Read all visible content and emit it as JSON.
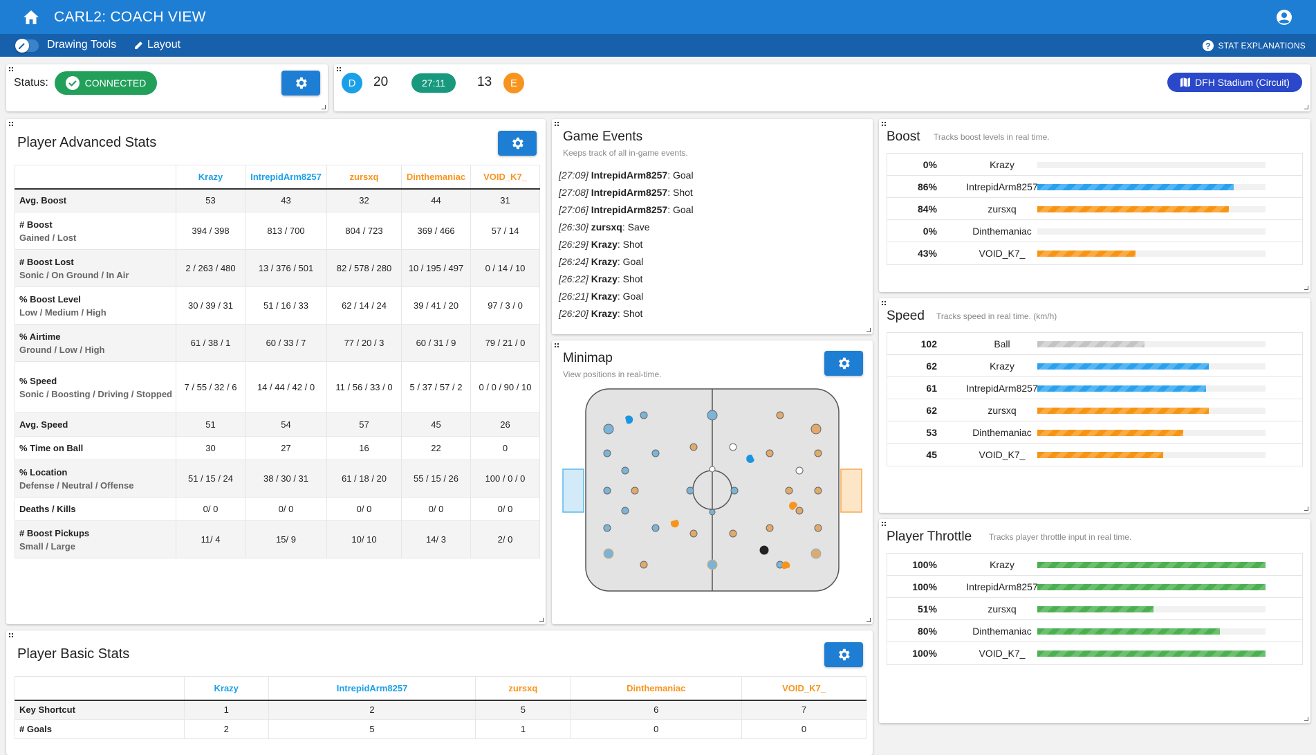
{
  "app": {
    "title": "CARL2: COACH VIEW",
    "home_icon": "home-icon",
    "account_icon": "account-icon"
  },
  "toolbar": {
    "drawing_tools": "Drawing Tools",
    "layout": "Layout",
    "stat_explanations": "STAT EXPLANATIONS"
  },
  "status": {
    "label": "Status:",
    "value": "CONNECTED"
  },
  "scoreboard": {
    "team_left": {
      "letter": "D",
      "score": "20",
      "color": "#1aa0e8"
    },
    "clock": "27:11",
    "team_right": {
      "letter": "E",
      "score": "13",
      "color": "#f7941d"
    },
    "stadium": "DFH Stadium (Circuit)"
  },
  "advanced": {
    "title": "Player Advanced Stats",
    "players": [
      {
        "name": "Krazy",
        "color": "#1aa0e8"
      },
      {
        "name": "IntrepidArm8257",
        "color": "#1aa0e8"
      },
      {
        "name": "zursxq",
        "color": "#f7941d"
      },
      {
        "name": "Dinthemaniac",
        "color": "#f7941d"
      },
      {
        "name": "VOID_K7_",
        "color": "#f7941d"
      }
    ],
    "rows": [
      {
        "label": "Avg. Boost",
        "sub": "",
        "values": [
          "53",
          "43",
          "32",
          "44",
          "31"
        ]
      },
      {
        "label": "# Boost",
        "sub": "Gained / Lost",
        "values": [
          "394 / 398",
          "813 / 700",
          "804 / 723",
          "369 / 466",
          "57 / 14"
        ]
      },
      {
        "label": "# Boost Lost",
        "sub": "Sonic / On Ground / In Air",
        "values": [
          "2 / 263 / 480",
          "13 / 376 / 501",
          "82 / 578 / 280",
          "10 / 195 / 497",
          "0 / 14 / 10"
        ]
      },
      {
        "label": "% Boost Level",
        "sub": "Low / Medium / High",
        "values": [
          "30 / 39 / 31",
          "51 / 16 / 33",
          "62 / 14 / 24",
          "39 / 41 / 20",
          "97 / 3 / 0"
        ]
      },
      {
        "label": "% Airtime",
        "sub": "Ground / Low / High",
        "values": [
          "61 / 38 / 1",
          "60 / 33 / 7",
          "77 / 20 / 3",
          "60 / 31 / 9",
          "79 / 21 / 0"
        ]
      },
      {
        "label": "% Speed",
        "sub": "Sonic / Boosting / Driving / Stopped",
        "values": [
          "7 / 55 / 32 / 6",
          "14 / 44 / 42 / 0",
          "11 / 56 / 33 / 0",
          "5 / 37 / 57 / 2",
          "0 / 0 / 90 / 10"
        ]
      },
      {
        "label": "Avg. Speed",
        "sub": "",
        "values": [
          "51",
          "54",
          "57",
          "45",
          "26"
        ]
      },
      {
        "label": "% Time on Ball",
        "sub": "",
        "values": [
          "30",
          "27",
          "16",
          "22",
          "0"
        ]
      },
      {
        "label": "% Location",
        "sub": "Defense / Neutral / Offense",
        "values": [
          "51 / 15 / 24",
          "38 / 30 / 31",
          "61 / 18 / 20",
          "55 / 15 / 26",
          "100 / 0 / 0"
        ]
      },
      {
        "label": "Deaths / Kills",
        "sub": "",
        "values": [
          "0/ 0",
          "0/ 0",
          "0/ 0",
          "0/ 0",
          "0/ 0"
        ]
      },
      {
        "label": "# Boost Pickups",
        "sub": "Small / Large",
        "values": [
          "11/ 4",
          "15/ 9",
          "10/ 10",
          "14/ 3",
          "2/ 0"
        ]
      }
    ]
  },
  "events": {
    "title": "Game Events",
    "subtitle": "Keeps track of all in-game events.",
    "items": [
      {
        "time": "[27:09]",
        "player": "IntrepidArm8257",
        "event": ": Goal"
      },
      {
        "time": "[27:08]",
        "player": "IntrepidArm8257",
        "event": ": Shot"
      },
      {
        "time": "[27:06]",
        "player": "IntrepidArm8257",
        "event": ": Goal"
      },
      {
        "time": "[26:30]",
        "player": "zursxq",
        "event": ": Save"
      },
      {
        "time": "[26:29]",
        "player": "Krazy",
        "event": ": Shot"
      },
      {
        "time": "[26:24]",
        "player": "Krazy",
        "event": ": Goal"
      },
      {
        "time": "[26:22]",
        "player": "Krazy",
        "event": ": Shot"
      },
      {
        "time": "[26:21]",
        "player": "Krazy",
        "event": ": Goal"
      },
      {
        "time": "[26:20]",
        "player": "Krazy",
        "event": ": Shot"
      }
    ]
  },
  "minimap": {
    "title": "Minimap",
    "subtitle": "View positions in real-time."
  },
  "boost": {
    "title": "Boost",
    "subtitle": "Tracks boost levels in real time.",
    "rows": [
      {
        "value": "0%",
        "name": "Krazy",
        "fraction": 0,
        "team": "blue"
      },
      {
        "value": "86%",
        "name": "IntrepidArm8257",
        "fraction": 0.86,
        "team": "blue"
      },
      {
        "value": "84%",
        "name": "zursxq",
        "fraction": 0.84,
        "team": "orange"
      },
      {
        "value": "0%",
        "name": "Dinthemaniac",
        "fraction": 0,
        "team": "orange"
      },
      {
        "value": "43%",
        "name": "VOID_K7_",
        "fraction": 0.43,
        "team": "orange"
      }
    ]
  },
  "speed": {
    "title": "Speed",
    "subtitle": "Tracks speed in real time. (km/h)",
    "rows": [
      {
        "value": "102",
        "name": "Ball",
        "fraction": 0.47,
        "team": "grey"
      },
      {
        "value": "62",
        "name": "Krazy",
        "fraction": 0.75,
        "team": "blue"
      },
      {
        "value": "61",
        "name": "IntrepidArm8257",
        "fraction": 0.74,
        "team": "blue"
      },
      {
        "value": "62",
        "name": "zursxq",
        "fraction": 0.75,
        "team": "orange"
      },
      {
        "value": "53",
        "name": "Dinthemaniac",
        "fraction": 0.64,
        "team": "orange"
      },
      {
        "value": "45",
        "name": "VOID_K7_",
        "fraction": 0.55,
        "team": "orange"
      }
    ]
  },
  "throttle": {
    "title": "Player Throttle",
    "subtitle": "Tracks player throttle input in real time.",
    "rows": [
      {
        "value": "100%",
        "name": "Krazy",
        "fraction": 1.0,
        "team": "green"
      },
      {
        "value": "100%",
        "name": "IntrepidArm8257",
        "fraction": 1.0,
        "team": "green"
      },
      {
        "value": "51%",
        "name": "zursxq",
        "fraction": 0.51,
        "team": "green"
      },
      {
        "value": "80%",
        "name": "Dinthemaniac",
        "fraction": 0.8,
        "team": "green"
      },
      {
        "value": "100%",
        "name": "VOID_K7_",
        "fraction": 1.0,
        "team": "green"
      }
    ]
  },
  "basic": {
    "title": "Player Basic Stats",
    "players": [
      {
        "name": "Krazy",
        "color": "#1aa0e8"
      },
      {
        "name": "IntrepidArm8257",
        "color": "#1aa0e8"
      },
      {
        "name": "zursxq",
        "color": "#f7941d"
      },
      {
        "name": "Dinthemaniac",
        "color": "#f7941d"
      },
      {
        "name": "VOID_K7_",
        "color": "#f7941d"
      }
    ],
    "rows": [
      {
        "label": "Key Shortcut",
        "values": [
          "1",
          "2",
          "5",
          "6",
          "7"
        ]
      },
      {
        "label": "# Goals",
        "values": [
          "2",
          "5",
          "1",
          "0",
          "0"
        ]
      }
    ]
  }
}
